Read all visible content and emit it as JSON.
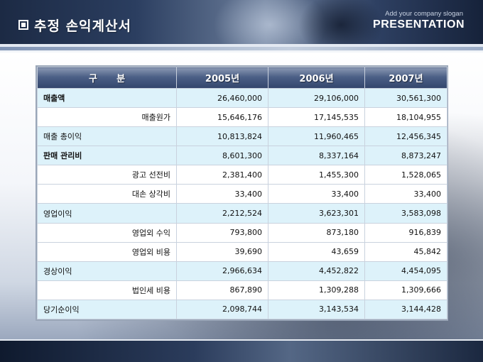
{
  "header": {
    "title": "추정 손익계산서",
    "slogan": "Add your company slogan",
    "brand": "PRESENTATION"
  },
  "table": {
    "columns": [
      "구      분",
      "2005년",
      "2006년",
      "2007년"
    ],
    "rows": [
      {
        "label": "매출액",
        "values": [
          "26,460,000",
          "29,106,000",
          "30,561,300"
        ]
      },
      {
        "label": "매출원가",
        "values": [
          "15,646,176",
          "17,145,535",
          "18,104,955"
        ]
      },
      {
        "label": "매출 총이익",
        "values": [
          "10,813,824",
          "11,960,465",
          "12,456,345"
        ]
      },
      {
        "label": "판매 관리비",
        "values": [
          "8,601,300",
          "8,337,164",
          "8,873,247"
        ]
      },
      {
        "label": "광고 선전비",
        "values": [
          "2,381,400",
          "1,455,300",
          "1,528,065"
        ]
      },
      {
        "label": "대손 상각비",
        "values": [
          "33,400",
          "33,400",
          "33,400"
        ]
      },
      {
        "label": "영업이익",
        "values": [
          "2,212,524",
          "3,623,301",
          "3,583,098"
        ]
      },
      {
        "label": "영업외 수익",
        "values": [
          "793,800",
          "873,180",
          "916,839"
        ]
      },
      {
        "label": "영업외 비용",
        "values": [
          "39,690",
          "43,659",
          "45,842"
        ]
      },
      {
        "label": "경상이익",
        "values": [
          "2,966,634",
          "4,452,822",
          "4,454,095"
        ]
      },
      {
        "label": "법인세 비용",
        "values": [
          "867,890",
          "1,309,288",
          "1,309,666"
        ]
      },
      {
        "label": "당기순이익",
        "values": [
          "2,098,744",
          "3,143,534",
          "3,144,428"
        ]
      }
    ]
  }
}
